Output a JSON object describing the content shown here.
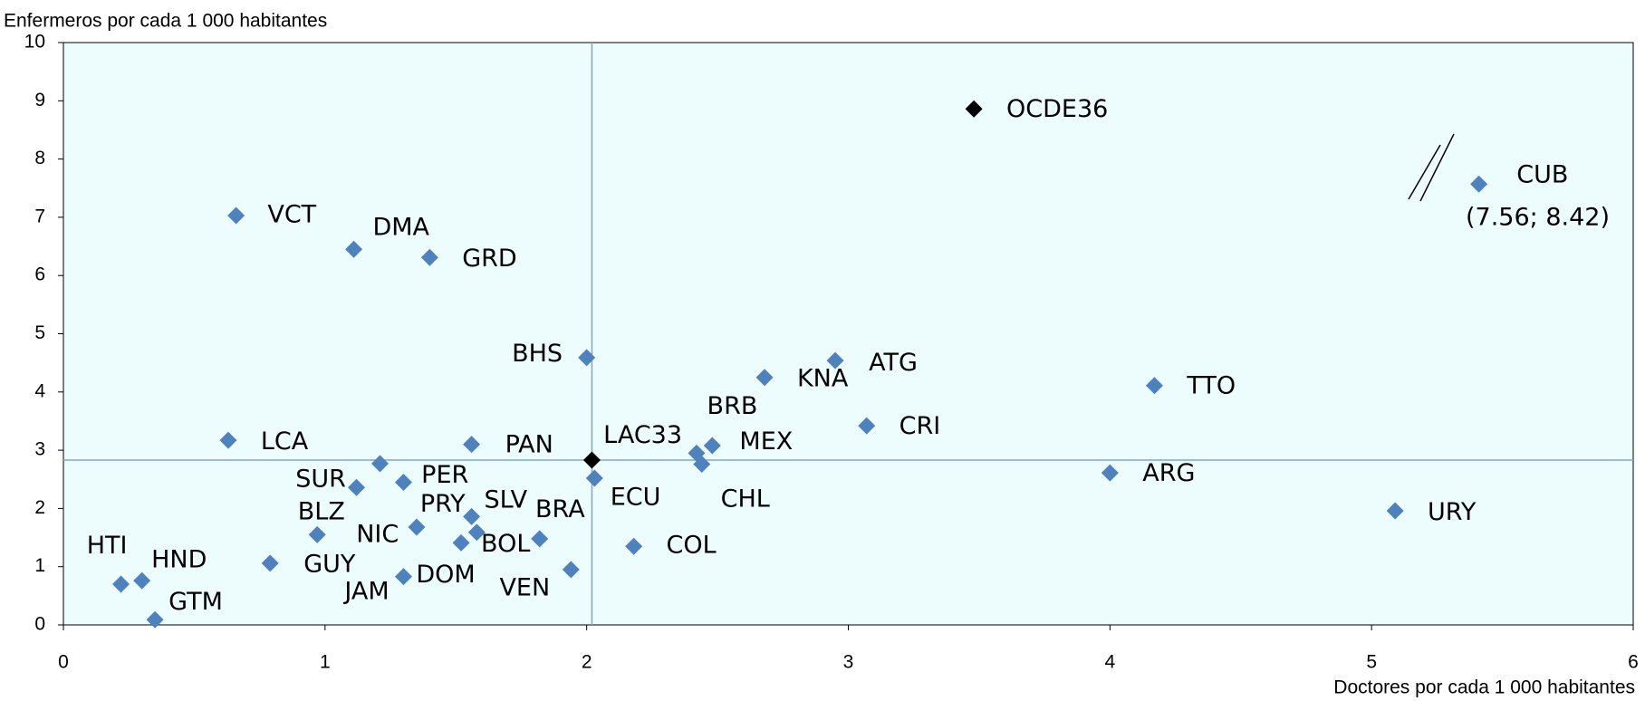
{
  "chart_data": {
    "type": "scatter",
    "y_label": "Enfermeros por cada 1 000 habitantes",
    "x_label": "Doctores por cada 1 000 habitantes",
    "xlim": [
      0,
      6
    ],
    "ylim": [
      0,
      10
    ],
    "xticks": [
      0,
      1,
      2,
      3,
      4,
      5,
      6
    ],
    "yticks": [
      0,
      1,
      2,
      3,
      4,
      5,
      6,
      7,
      8,
      9,
      10
    ],
    "vline": 2.02,
    "hline": 2.83,
    "labels": [
      "VCT",
      "DMA",
      "GRD",
      "BHS",
      "KNA",
      "ATG",
      "TTO",
      "BRB",
      "MEX",
      "CHL",
      "CRI",
      "LCA",
      "PAN",
      "LAC33",
      "ECU",
      "ARG",
      "URY",
      "CUB",
      "OCDE36",
      "SUR",
      null,
      "PER",
      "BLZ",
      "NIC",
      "PRY",
      "SLV",
      "BRA",
      "BOL",
      "COL",
      "VEN",
      "DOM",
      "GUY",
      "HTI",
      "HND",
      "GTM"
    ],
    "x": [
      0.66,
      1.11,
      1.4,
      2.0,
      2.68,
      2.95,
      4.17,
      2.42,
      2.48,
      2.44,
      3.07,
      0.63,
      1.56,
      2.02,
      2.03,
      4.0,
      5.09,
      5.41,
      3.48,
      1.12,
      1.21,
      1.3,
      0.97,
      1.35,
      1.56,
      1.58,
      1.82,
      1.52,
      2.18,
      1.94,
      1.3,
      0.79,
      0.22,
      0.3,
      0.35
    ],
    "y": [
      7.03,
      6.45,
      6.31,
      4.59,
      4.25,
      4.54,
      4.11,
      2.95,
      3.08,
      2.76,
      3.42,
      3.17,
      3.1,
      2.83,
      2.52,
      2.61,
      1.96,
      7.57,
      8.86,
      2.36,
      2.77,
      2.45,
      1.55,
      1.68,
      1.86,
      1.59,
      1.48,
      1.41,
      1.35,
      0.95,
      0.83,
      1.06,
      0.7,
      0.76,
      0.09
    ],
    "colors": [
      "#4f81bd",
      "#4f81bd",
      "#4f81bd",
      "#4f81bd",
      "#4f81bd",
      "#4f81bd",
      "#4f81bd",
      "#4f81bd",
      "#4f81bd",
      "#4f81bd",
      "#4f81bd",
      "#4f81bd",
      "#4f81bd",
      "#000000",
      "#4f81bd",
      "#4f81bd",
      "#4f81bd",
      "#4f81bd",
      "#000000",
      "#4f81bd",
      "#4f81bd",
      "#4f81bd",
      "#4f81bd",
      "#4f81bd",
      "#4f81bd",
      "#4f81bd",
      "#4f81bd",
      "#4f81bd",
      "#4f81bd",
      "#4f81bd",
      "#4f81bd",
      "#4f81bd",
      "#4f81bd",
      "#4f81bd",
      "#4f81bd"
    ],
    "annotations": [
      "(7.56; 8.42)",
      "JAM"
    ]
  }
}
